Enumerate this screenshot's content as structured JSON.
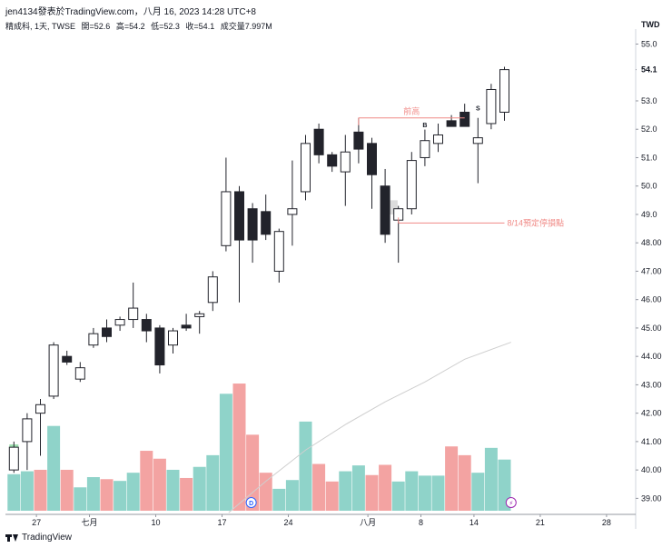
{
  "header": {
    "title": "jen4134發表於TradingView.com，八月 16, 2023 14:28 UTC+8"
  },
  "legend": {
    "symbol": "精成科, 1天, TWSE",
    "open": "開=52.6",
    "high": "高=54.2",
    "low": "低=52.3",
    "close": "收=54.1",
    "volume": "成交量7.997M"
  },
  "currency": "TWD",
  "footer": {
    "brand": "TradingView"
  },
  "colors": {
    "up_body": "#ffffff",
    "down_body": "#22232b",
    "wick": "#22232b",
    "vol_up": "#8fd3c9",
    "vol_down": "#f3a3a2",
    "annotation": "#f08a86",
    "ma_line": "#cfcfcf",
    "last_price_bg": "#ffffff"
  },
  "chart_data": {
    "type": "candlestick",
    "y_ticks": [
      "55.0",
      "54.1",
      "53.0",
      "52.0",
      "51.0",
      "50.0",
      "49.0",
      "48.00",
      "47.00",
      "46.00",
      "45.00",
      "44.00",
      "43.00",
      "42.00",
      "41.00",
      "40.00",
      "39.00"
    ],
    "y_tick_values": [
      55,
      54.1,
      53,
      52,
      51,
      50,
      49,
      48,
      47,
      46,
      45,
      44,
      43,
      42,
      41,
      40,
      39
    ],
    "ylim": [
      38.5,
      55.4
    ],
    "x_tick_labels": [
      {
        "label": "27",
        "index": 1.7
      },
      {
        "label": "七月",
        "index": 5.7
      },
      {
        "label": "10",
        "index": 10.7
      },
      {
        "label": "17",
        "index": 15.7
      },
      {
        "label": "24",
        "index": 20.7
      },
      {
        "label": "八月",
        "index": 26.7
      },
      {
        "label": "8",
        "index": 30.7
      },
      {
        "label": "14",
        "index": 34.7
      },
      {
        "label": "21",
        "index": 39.7
      },
      {
        "label": "28",
        "index": 44.7
      }
    ],
    "candles": [
      {
        "o": 40.0,
        "h": 41.0,
        "l": 39.9,
        "c": 40.8
      },
      {
        "o": 41.0,
        "h": 42.0,
        "l": 40.0,
        "c": 41.8
      },
      {
        "o": 42.0,
        "h": 42.5,
        "l": 40.5,
        "c": 42.3
      },
      {
        "o": 42.6,
        "h": 44.5,
        "l": 42.5,
        "c": 44.4
      },
      {
        "o": 44.0,
        "h": 44.2,
        "l": 43.7,
        "c": 43.8
      },
      {
        "o": 43.2,
        "h": 43.8,
        "l": 43.1,
        "c": 43.6
      },
      {
        "o": 44.4,
        "h": 45.0,
        "l": 44.3,
        "c": 44.8
      },
      {
        "o": 45.0,
        "h": 45.3,
        "l": 44.5,
        "c": 44.7
      },
      {
        "o": 45.1,
        "h": 45.4,
        "l": 44.9,
        "c": 45.3
      },
      {
        "o": 45.3,
        "h": 46.6,
        "l": 45.0,
        "c": 45.7
      },
      {
        "o": 45.3,
        "h": 45.5,
        "l": 44.5,
        "c": 44.9
      },
      {
        "o": 45.0,
        "h": 45.1,
        "l": 43.4,
        "c": 43.7
      },
      {
        "o": 44.4,
        "h": 45.0,
        "l": 44.1,
        "c": 44.9
      },
      {
        "o": 45.1,
        "h": 45.5,
        "l": 44.9,
        "c": 45.0
      },
      {
        "o": 45.4,
        "h": 45.6,
        "l": 44.8,
        "c": 45.5
      },
      {
        "o": 45.9,
        "h": 47.0,
        "l": 45.6,
        "c": 46.8
      },
      {
        "o": 47.9,
        "h": 51.0,
        "l": 47.7,
        "c": 49.8
      },
      {
        "o": 49.8,
        "h": 50.0,
        "l": 45.9,
        "c": 48.1
      },
      {
        "o": 49.2,
        "h": 49.4,
        "l": 47.3,
        "c": 48.1
      },
      {
        "o": 49.1,
        "h": 49.7,
        "l": 48.1,
        "c": 48.3
      },
      {
        "o": 47.0,
        "h": 48.5,
        "l": 46.6,
        "c": 48.4
      },
      {
        "o": 49.0,
        "h": 50.9,
        "l": 47.9,
        "c": 49.2
      },
      {
        "o": 49.8,
        "h": 51.8,
        "l": 49.5,
        "c": 51.5
      },
      {
        "o": 52.0,
        "h": 52.2,
        "l": 50.8,
        "c": 51.1
      },
      {
        "o": 51.1,
        "h": 51.2,
        "l": 50.5,
        "c": 50.7
      },
      {
        "o": 50.5,
        "h": 51.8,
        "l": 49.3,
        "c": 51.2
      },
      {
        "o": 51.9,
        "h": 52.4,
        "l": 50.8,
        "c": 51.3
      },
      {
        "o": 51.5,
        "h": 51.7,
        "l": 49.2,
        "c": 50.4
      },
      {
        "o": 50.0,
        "h": 50.6,
        "l": 48.0,
        "c": 48.3
      },
      {
        "o": 48.8,
        "h": 49.3,
        "l": 47.3,
        "c": 49.2
      },
      {
        "o": 49.2,
        "h": 51.2,
        "l": 49.0,
        "c": 50.9
      },
      {
        "o": 51.0,
        "h": 52.0,
        "l": 50.7,
        "c": 51.6
      },
      {
        "o": 51.5,
        "h": 52.2,
        "l": 51.2,
        "c": 51.8
      },
      {
        "o": 52.3,
        "h": 52.5,
        "l": 52.2,
        "c": 52.1
      },
      {
        "o": 52.6,
        "h": 52.9,
        "l": 52.2,
        "c": 52.1
      },
      {
        "o": 51.5,
        "h": 52.4,
        "l": 50.1,
        "c": 51.7
      },
      {
        "o": 52.2,
        "h": 53.6,
        "l": 52.0,
        "c": 53.4
      },
      {
        "o": 52.6,
        "h": 54.2,
        "l": 52.3,
        "c": 54.1
      }
    ],
    "volumes": [
      {
        "v": 1.25,
        "up": true
      },
      {
        "v": 1.35,
        "up": true
      },
      {
        "v": 1.4,
        "up": false
      },
      {
        "v": 2.9,
        "up": true
      },
      {
        "v": 1.4,
        "up": false
      },
      {
        "v": 0.8,
        "up": true
      },
      {
        "v": 1.15,
        "up": true
      },
      {
        "v": 1.08,
        "up": false
      },
      {
        "v": 1.02,
        "up": true
      },
      {
        "v": 1.3,
        "up": true
      },
      {
        "v": 2.05,
        "up": false
      },
      {
        "v": 1.78,
        "up": false
      },
      {
        "v": 1.4,
        "up": true
      },
      {
        "v": 1.12,
        "up": false
      },
      {
        "v": 1.5,
        "up": true
      },
      {
        "v": 1.9,
        "up": true
      },
      {
        "v": 4.0,
        "up": true
      },
      {
        "v": 4.35,
        "up": false
      },
      {
        "v": 2.6,
        "up": false
      },
      {
        "v": 1.3,
        "up": false
      },
      {
        "v": 0.75,
        "up": true
      },
      {
        "v": 1.05,
        "up": true
      },
      {
        "v": 3.05,
        "up": true
      },
      {
        "v": 1.6,
        "up": false
      },
      {
        "v": 1.0,
        "up": false
      },
      {
        "v": 1.35,
        "up": true
      },
      {
        "v": 1.55,
        "up": true
      },
      {
        "v": 1.22,
        "up": false
      },
      {
        "v": 1.57,
        "up": false
      },
      {
        "v": 1.0,
        "up": true
      },
      {
        "v": 1.35,
        "up": true
      },
      {
        "v": 1.2,
        "up": true
      },
      {
        "v": 1.2,
        "up": true
      },
      {
        "v": 2.2,
        "up": false
      },
      {
        "v": 1.9,
        "up": false
      },
      {
        "v": 1.3,
        "up": true
      },
      {
        "v": 2.15,
        "up": true
      },
      {
        "v": 1.75,
        "up": true
      }
    ],
    "volume_max": 4.6,
    "ma_line": [
      {
        "index": 16.2,
        "value": 38.5
      },
      {
        "index": 19.0,
        "value": 39.6
      },
      {
        "index": 22.0,
        "value": 40.7
      },
      {
        "index": 25.0,
        "value": 41.6
      },
      {
        "index": 28.0,
        "value": 42.4
      },
      {
        "index": 31.0,
        "value": 43.1
      },
      {
        "index": 34.0,
        "value": 43.9
      },
      {
        "index": 37.5,
        "value": 44.5
      }
    ],
    "annotations": {
      "resistance": {
        "label": "前高",
        "value": 52.4,
        "from": 26,
        "to": 34
      },
      "stop_loss": {
        "label": "8/14預定停損點",
        "value": 48.7,
        "from": 29,
        "to": 37
      },
      "buy_marker": {
        "label": "B",
        "index": 31,
        "value": 52.1
      },
      "sell_marker": {
        "label": "S",
        "index": 35,
        "value": 52.7
      },
      "d_marker": {
        "label": "D",
        "index": 17.9
      },
      "flash_marker": {
        "label": "⚡",
        "index": 37.5
      }
    },
    "highlight_boxes": [
      {
        "index": 0,
        "from": 40.3,
        "to": 40.9
      },
      {
        "index": 28.6,
        "from": 49.0,
        "to": 49.5
      }
    ]
  }
}
